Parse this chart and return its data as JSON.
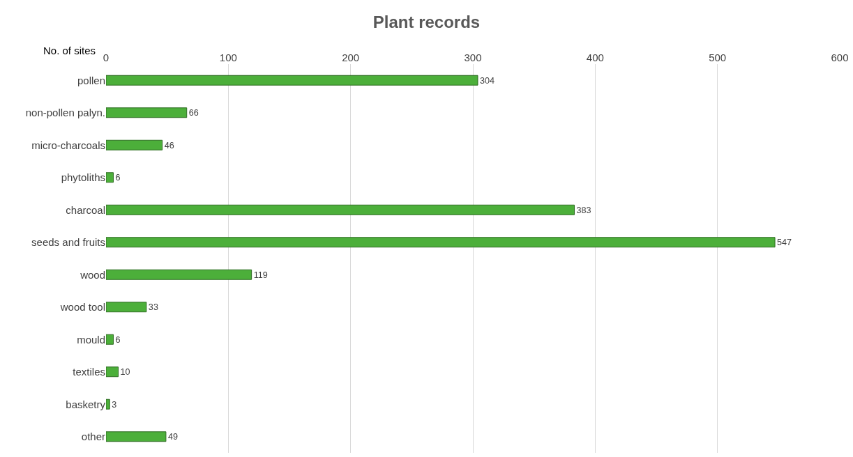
{
  "chart_data": {
    "type": "bar",
    "orientation": "horizontal",
    "title": "Plant records",
    "xlabel": "No. of sites",
    "categories": [
      "pollen",
      "non-pollen palyn.",
      "micro-charcoals",
      "phytoliths",
      "charcoal",
      "seeds and fruits",
      "wood",
      "wood tool",
      "mould",
      "textiles",
      "basketry",
      "other"
    ],
    "values": [
      304,
      66,
      46,
      6,
      383,
      547,
      119,
      33,
      6,
      10,
      3,
      49
    ],
    "color": "#4caf3a",
    "xlim": [
      0,
      600
    ],
    "xticks": [
      0,
      100,
      200,
      300,
      400,
      500,
      600
    ],
    "grid": "x",
    "data_labels": true,
    "legend": false
  }
}
